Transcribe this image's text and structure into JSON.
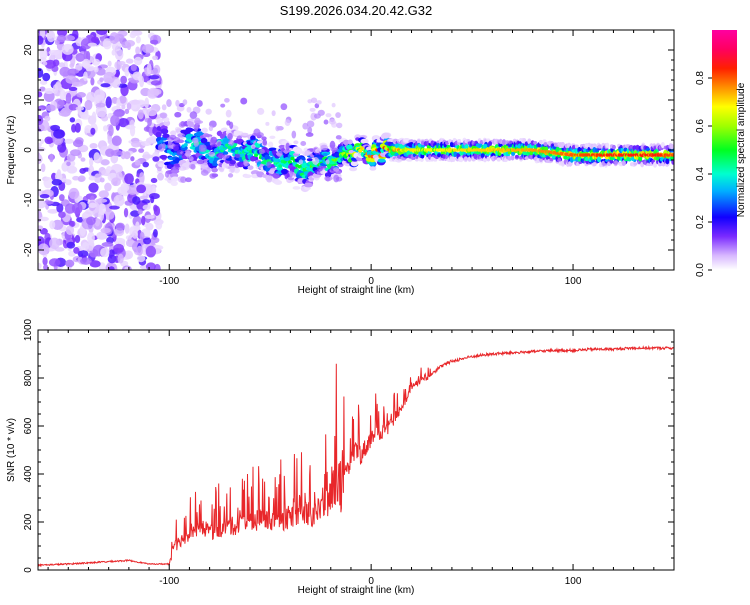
{
  "title": "S199.2026.034.20.42.G32",
  "chart_data": [
    {
      "type": "heatmap",
      "name": "spectrogram",
      "xlabel": "Height of straight line (km)",
      "ylabel": "Frequency (Hz)",
      "xlim": [
        -165,
        150
      ],
      "ylim": [
        -24,
        24
      ],
      "x_ticks": [
        -100,
        0,
        100
      ],
      "y_ticks": [
        20,
        10,
        0,
        -10,
        -20
      ],
      "y_tick_labels": [
        "20",
        "10",
        "0",
        "-10",
        "-20"
      ],
      "colorbar": {
        "label": "Normalized spectral amplitude",
        "range": [
          0.0,
          1.0
        ],
        "ticks": [
          0.0,
          0.2,
          0.4,
          0.6,
          0.8
        ],
        "tick_labels": [
          "0.0",
          "0.2",
          "0.4",
          "0.6",
          "0.8"
        ],
        "colors": [
          "#ffffff",
          "#b070ff",
          "#5500ff",
          "#0000ff",
          "#00ffff",
          "#00ff00",
          "#ffff00",
          "#ff8000",
          "#ff0000",
          "#ff0099"
        ]
      },
      "ridge": {
        "description_free": true,
        "x": [
          -105,
          -100,
          -95,
          -90,
          -85,
          -80,
          -75,
          -70,
          -65,
          -60,
          -55,
          -50,
          -45,
          -40,
          -35,
          -30,
          -25,
          -20,
          -15,
          -10,
          -5,
          0,
          5,
          10,
          15,
          20,
          30,
          40,
          60,
          80,
          100,
          120,
          140,
          150
        ],
        "freq": [
          2,
          0,
          -1,
          2,
          1,
          -1,
          0,
          1,
          -1,
          0,
          -1,
          -2,
          -3,
          -2,
          -3,
          -4,
          -3,
          -2,
          -1,
          -1,
          0,
          -1,
          0,
          0,
          0,
          0,
          0,
          0,
          0,
          0,
          -1,
          -1,
          -1,
          -1
        ],
        "amplitude": [
          0.3,
          0.35,
          0.3,
          0.4,
          0.45,
          0.4,
          0.45,
          0.45,
          0.45,
          0.45,
          0.5,
          0.45,
          0.45,
          0.5,
          0.5,
          0.55,
          0.5,
          0.55,
          0.6,
          0.65,
          0.7,
          0.8,
          0.85,
          0.8,
          0.75,
          0.7,
          0.68,
          0.7,
          0.72,
          0.75,
          0.8,
          0.85,
          0.85,
          0.8
        ],
        "band_halfwidth_hz": [
          6,
          6,
          6,
          5,
          5,
          4,
          4,
          4,
          4,
          4,
          4,
          4,
          4,
          4,
          4,
          4,
          3,
          3,
          3,
          2,
          2,
          2,
          2,
          2,
          2,
          2,
          2,
          2,
          2,
          2,
          2,
          2,
          2,
          2
        ]
      },
      "noise_region_x": [
        -165,
        -105
      ]
    },
    {
      "type": "line",
      "name": "snr",
      "xlabel": "Height of straight line (km)",
      "ylabel": "SNR (10 * v/v)",
      "xlim": [
        -165,
        150
      ],
      "ylim": [
        0,
        1000
      ],
      "x_ticks": [
        -100,
        0,
        100
      ],
      "y_ticks": [
        0,
        200,
        400,
        600,
        800,
        1000
      ],
      "color": "#e8272a",
      "x": [
        -165,
        -150,
        -140,
        -130,
        -120,
        -110,
        -100,
        -98,
        -95,
        -90,
        -85,
        -80,
        -75,
        -70,
        -65,
        -60,
        -55,
        -50,
        -45,
        -40,
        -35,
        -30,
        -25,
        -20,
        -17,
        -15,
        -12,
        -10,
        -8,
        -5,
        -2,
        0,
        2,
        5,
        8,
        10,
        13,
        15,
        18,
        20,
        23,
        25,
        28,
        30,
        35,
        40,
        50,
        60,
        70,
        80,
        90,
        100,
        110,
        120,
        130,
        140,
        150
      ],
      "y": [
        20,
        25,
        30,
        35,
        40,
        25,
        25,
        90,
        120,
        150,
        180,
        160,
        170,
        180,
        190,
        200,
        210,
        200,
        210,
        220,
        250,
        230,
        250,
        300,
        400,
        330,
        380,
        450,
        500,
        480,
        520,
        550,
        560,
        570,
        590,
        610,
        650,
        680,
        720,
        760,
        780,
        790,
        800,
        820,
        850,
        870,
        890,
        900,
        905,
        910,
        915,
        915,
        920,
        920,
        925,
        925,
        925
      ],
      "noise_amplitude": [
        10,
        10,
        10,
        10,
        10,
        5,
        10,
        80,
        90,
        100,
        110,
        120,
        120,
        130,
        140,
        140,
        150,
        150,
        160,
        170,
        180,
        190,
        200,
        250,
        380,
        320,
        200,
        160,
        150,
        140,
        130,
        120,
        110,
        100,
        90,
        80,
        70,
        60,
        50,
        45,
        40,
        35,
        30,
        28,
        25,
        22,
        20,
        20,
        18,
        18,
        18,
        18,
        18,
        18,
        18,
        18,
        18
      ]
    }
  ]
}
